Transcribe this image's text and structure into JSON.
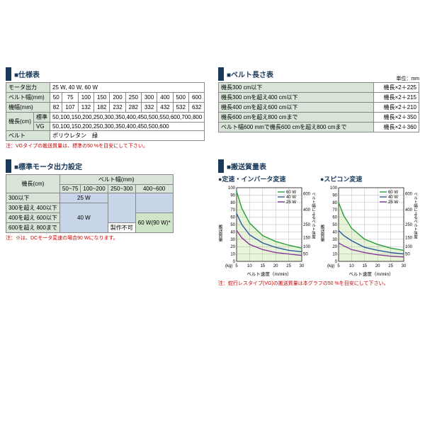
{
  "spec_table": {
    "title": "■仕様表",
    "rows": [
      {
        "label": "モータ出力",
        "cells": [
          "25 W, 40 W, 60 W"
        ],
        "span": 10
      },
      {
        "label": "ベルト幅(mm)",
        "cells": [
          "50",
          "75",
          "100",
          "150",
          "200",
          "250",
          "300",
          "400",
          "500",
          "600"
        ]
      },
      {
        "label": "機幅(mm)",
        "cells": [
          "82",
          "107",
          "132",
          "182",
          "232",
          "282",
          "332",
          "432",
          "532",
          "632"
        ]
      },
      {
        "label": "機長(cm)",
        "sub": "標準",
        "cells": [
          "50,100,150,200,250,300,350,400,450,500,550,600,700,800"
        ],
        "span": 10
      },
      {
        "label": "",
        "sub": "VG",
        "cells": [
          "50,100,150,200,250,300,350,400,450,500,600"
        ],
        "span": 10
      },
      {
        "label": "ベルト",
        "cells": [
          "ポリウレタン　緑"
        ],
        "span": 10
      }
    ],
    "note": "注：VGタイプの搬送質量は、標準の50 %を目安にして下さい。"
  },
  "length_table": {
    "title": "■ベルト長さ表",
    "unit": "単位：mm",
    "rows": [
      {
        "c1": "機長300 cm以下",
        "c2": "機長×2＋225"
      },
      {
        "c1": "機長300 cmを超え400 cm以下",
        "c2": "機長×2＋215"
      },
      {
        "c1": "機長400 cmを超え600 cm以下",
        "c2": "機長×2＋210"
      },
      {
        "c1": "機長600 cmを超え800 cmまで",
        "c2": "機長×2＋350"
      },
      {
        "c1": "ベルト幅600 mmで機長600 cmを超え800 cmまで",
        "c2": "機長×2＋360"
      }
    ]
  },
  "motor_table": {
    "title": "■標準モータ出力設定",
    "col_hdr": "ベルト幅(mm)",
    "row_hdr": "機長(cm)",
    "cols": [
      "50~75",
      "100~200",
      "250~300",
      "400~600"
    ],
    "rows": [
      "300以下",
      "300を超え 400以下",
      "400を超え 600以下",
      "600を超え 800まで"
    ],
    "cells": {
      "w25": "25 W",
      "w40": "40 W",
      "w60": "60 W(90 W)*",
      "na": "製作不可"
    },
    "note": "注：※は、DCモータ変速の場合90 Wになります。"
  },
  "capacity": {
    "title": "■搬送質量表",
    "chart1": "●定速・インバータ変速",
    "chart2": "●スピコン変速",
    "ylabel": "搬送質量",
    "yunit": "(kg)",
    "xlabel": "ベルト速度（m/min）",
    "y2label": "ベルト幅によるベルト強度",
    "y2unit": "(mm)",
    "yticks": [
      0,
      10,
      20,
      30,
      40,
      50,
      60,
      70,
      80,
      90,
      100
    ],
    "xticks": [
      5,
      10,
      15,
      20,
      25,
      30
    ],
    "y2ticks": [
      50,
      100,
      150,
      250,
      400,
      600
    ],
    "legend": [
      {
        "label": "60 W",
        "color": "#2a9d3a"
      },
      {
        "label": "40 W",
        "color": "#2a5a9d"
      },
      {
        "label": "25 W",
        "color": "#8a3a9d"
      }
    ],
    "note": "注：蛇行レスタイプ(VG)の搬送質量は本グラフの50 %を目安にして下さい。",
    "series1": {
      "s60": [
        [
          5,
          95
        ],
        [
          7,
          72
        ],
        [
          10,
          52
        ],
        [
          15,
          35
        ],
        [
          20,
          27
        ],
        [
          25,
          22
        ],
        [
          30,
          18
        ]
      ],
      "s40": [
        [
          5,
          65
        ],
        [
          7,
          50
        ],
        [
          10,
          36
        ],
        [
          15,
          25
        ],
        [
          20,
          19
        ],
        [
          25,
          15
        ],
        [
          30,
          13
        ]
      ],
      "s25": [
        [
          5,
          42
        ],
        [
          7,
          32
        ],
        [
          10,
          23
        ],
        [
          15,
          16
        ],
        [
          20,
          12
        ],
        [
          25,
          10
        ],
        [
          30,
          8
        ]
      ]
    },
    "series2": {
      "s60": [
        [
          5,
          80
        ],
        [
          7,
          62
        ],
        [
          10,
          45
        ],
        [
          15,
          30
        ],
        [
          20,
          23
        ],
        [
          25,
          18
        ],
        [
          30,
          15
        ]
      ],
      "s40": [
        [
          5,
          42
        ],
        [
          7,
          35
        ],
        [
          10,
          28
        ],
        [
          15,
          19
        ],
        [
          20,
          15
        ],
        [
          25,
          12
        ],
        [
          30,
          10
        ]
      ],
      "s25": [
        [
          5,
          25
        ],
        [
          7,
          21
        ],
        [
          10,
          16
        ],
        [
          15,
          12
        ],
        [
          20,
          9
        ],
        [
          25,
          7
        ],
        [
          30,
          6
        ]
      ]
    },
    "bg_fill": "#e8f4d8",
    "grid": "#888"
  }
}
